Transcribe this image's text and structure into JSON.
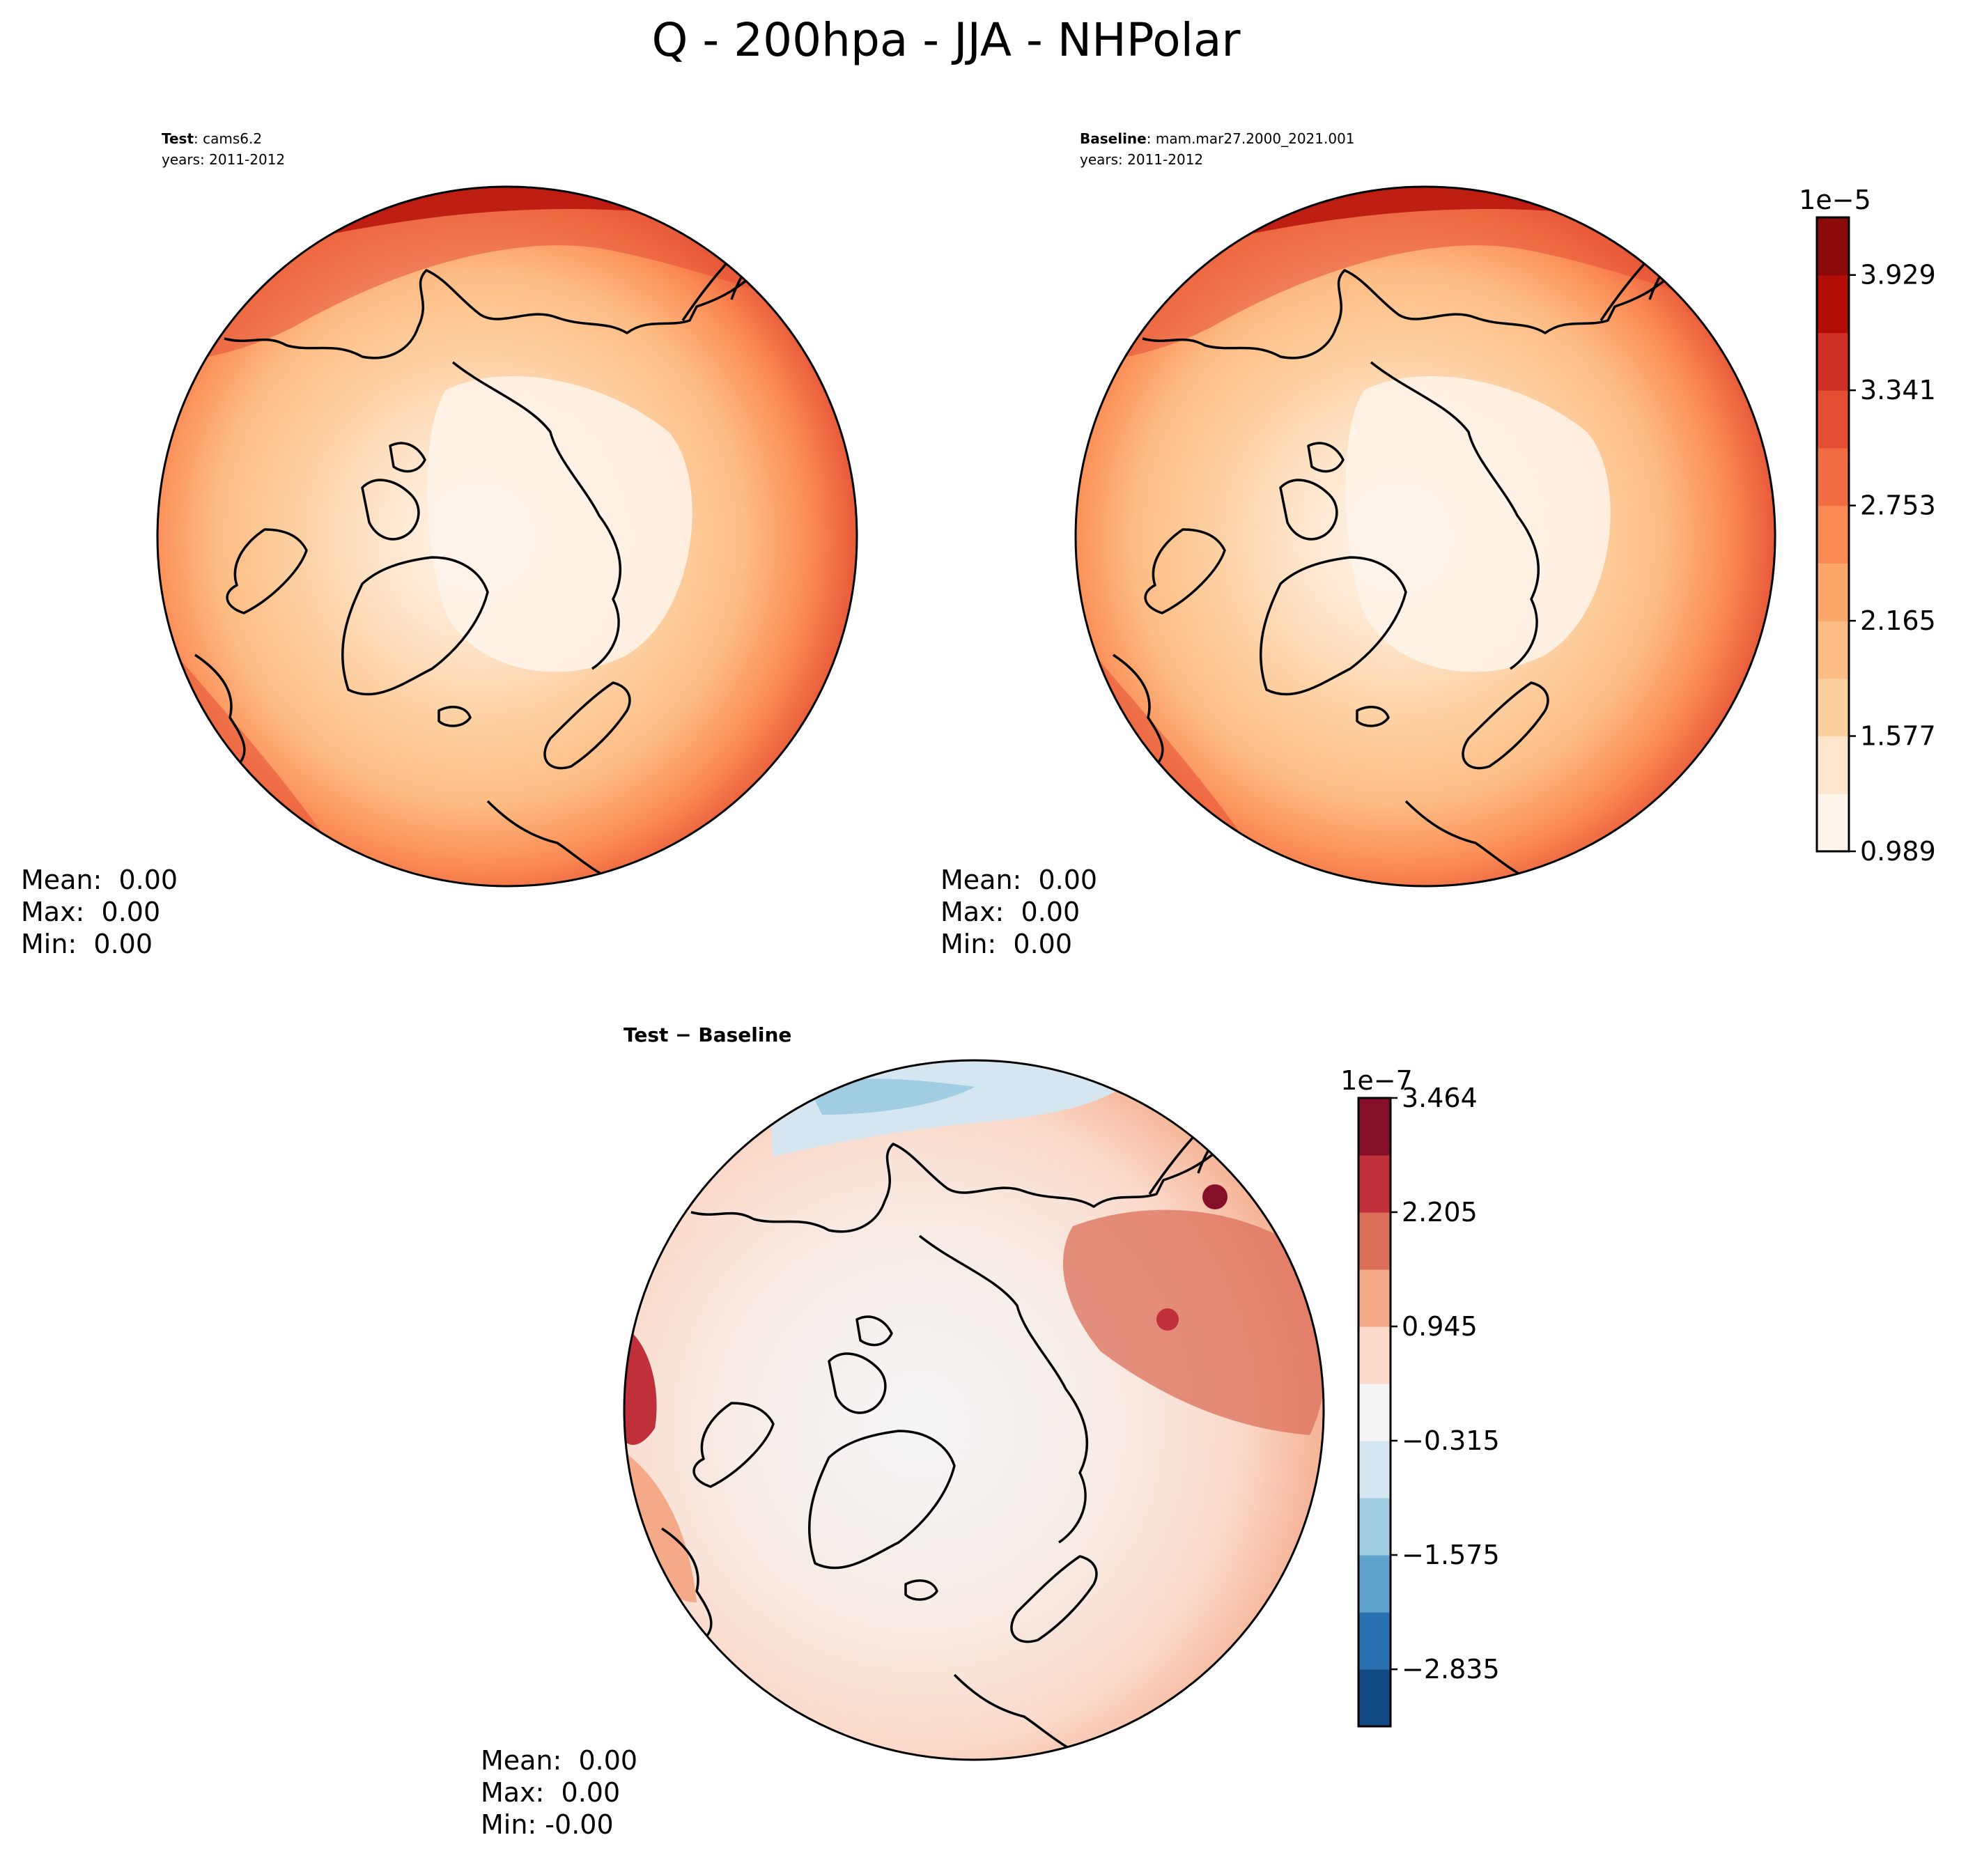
{
  "figure": {
    "title": "Q - 200hpa - JJA - NHPolar"
  },
  "chart_data": [
    {
      "type": "heatmap",
      "panel": "test",
      "projection": "north-polar-stereographic",
      "label_bold": "Test",
      "label_sep": ": ",
      "case": "cams6.2",
      "years": "years: 2011-2012",
      "colormap": "sequential-reds",
      "stats": {
        "mean": "Mean:  0.00",
        "max": "Max:  0.00",
        "min": "Min:  0.00"
      }
    },
    {
      "type": "heatmap",
      "panel": "baseline",
      "projection": "north-polar-stereographic",
      "label_bold": "Baseline",
      "label_sep": ": ",
      "case": "mam.mar27.2000_2021.001",
      "years": "years: 2011-2012",
      "colormap": "sequential-reds",
      "stats": {
        "mean": "Mean:  0.00",
        "max": "Max:  0.00",
        "min": "Min:  0.00"
      },
      "colorbar": {
        "exponent": "1e−5",
        "tick_labels": [
          "0.989",
          "1.577",
          "2.165",
          "2.753",
          "3.341",
          "3.929"
        ],
        "tick_values": [
          0.989,
          1.577,
          2.165,
          2.753,
          3.341,
          3.929
        ],
        "range": [
          0.989,
          4.223
        ],
        "levels": 11,
        "colors": [
          "#fff5eb",
          "#fee6ce",
          "#fdd0a2",
          "#fdbd85",
          "#fda86a",
          "#fb8b54",
          "#f26c43",
          "#e44f34",
          "#cf2f26",
          "#b30d07",
          "#8b0a0a"
        ]
      }
    },
    {
      "type": "heatmap",
      "panel": "difference",
      "projection": "north-polar-stereographic",
      "label_bold": "Test − Baseline",
      "colormap": "diverging-RdBu",
      "stats": {
        "mean": "Mean:  0.00",
        "max": "Max:  0.00",
        "min": "Min: -0.00"
      },
      "colorbar": {
        "exponent": "1e−7",
        "tick_labels": [
          "−2.835",
          "−1.575",
          "−0.315",
          "0.945",
          "2.205",
          "3.464"
        ],
        "tick_values": [
          -2.835,
          -1.575,
          -0.315,
          0.945,
          2.205,
          3.464
        ],
        "range": [
          -3.464,
          3.464
        ],
        "levels": 11,
        "colors": [
          "#124a83",
          "#2a71b2",
          "#5ea3cc",
          "#a1cde3",
          "#d5e6f1",
          "#f5f5f5",
          "#fbdacb",
          "#f4aa89",
          "#dc6f5a",
          "#bf303a",
          "#850f28"
        ]
      }
    }
  ]
}
